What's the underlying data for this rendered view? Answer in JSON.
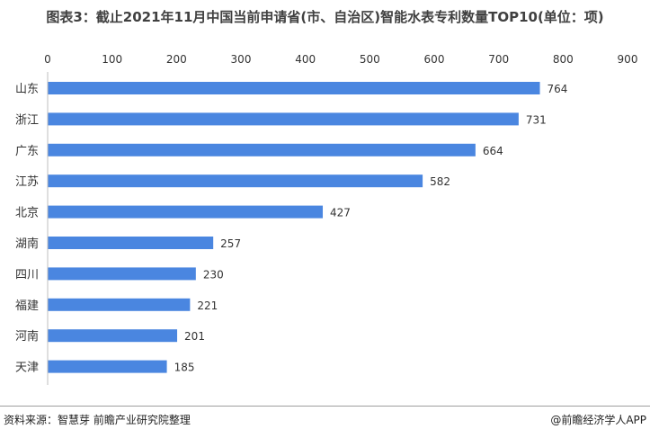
{
  "title": "图表3：截止2021年11月中国当前申请省(市、自治区)智能水表专利数量TOP10(单位：项)",
  "source_left": "资料来源：智慧芽 前瞻产业研究院整理",
  "source_right": "@前瞻经济学人APP",
  "colors": {
    "bar": "#4a86e0",
    "axis": "#bfbfbf",
    "text": "#333333"
  },
  "chart_data": {
    "type": "bar",
    "orientation": "horizontal",
    "categories": [
      "山东",
      "浙江",
      "广东",
      "江苏",
      "北京",
      "湖南",
      "四川",
      "福建",
      "河南",
      "天津"
    ],
    "values": [
      764,
      731,
      664,
      582,
      427,
      257,
      230,
      221,
      201,
      185
    ],
    "xlim": [
      0,
      900
    ],
    "xticks": [
      0,
      100,
      200,
      300,
      400,
      500,
      600,
      700,
      800,
      900
    ],
    "x_axis_position": "top",
    "grid": false,
    "legend": "none"
  }
}
